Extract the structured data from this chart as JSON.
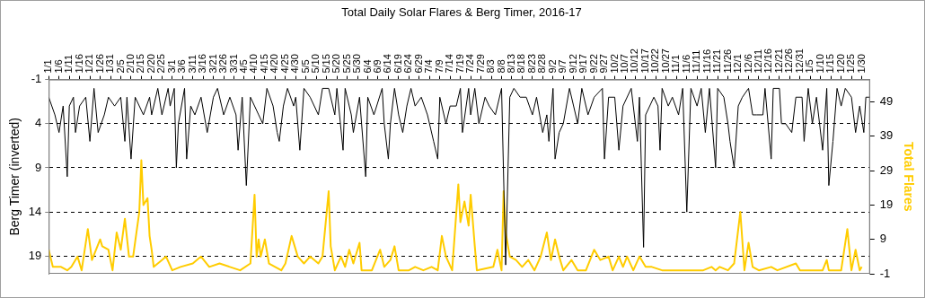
{
  "chart_data": {
    "type": "line",
    "title": "Total Daily Solar Flares & Berg Timer, 2016-17",
    "ylabel": "Berg Timer (inverted)",
    "y2label": "Total Flares",
    "xlim": [
      "2016-01-01",
      "2017-02-03"
    ],
    "xticks": [
      {
        "value": "2016-01-01",
        "label": "1/1"
      },
      {
        "value": "2016-01-06",
        "label": "1/6"
      },
      {
        "value": "2016-01-11",
        "label": "1/11"
      },
      {
        "value": "2016-01-16",
        "label": "1/16"
      },
      {
        "value": "2016-01-21",
        "label": "1/21"
      },
      {
        "value": "2016-01-26",
        "label": "1/26"
      },
      {
        "value": "2016-01-31",
        "label": "1/31"
      },
      {
        "value": "2016-02-05",
        "label": "2/5"
      },
      {
        "value": "2016-02-10",
        "label": "2/10"
      },
      {
        "value": "2016-02-15",
        "label": "2/15"
      },
      {
        "value": "2016-02-20",
        "label": "2/20"
      },
      {
        "value": "2016-02-25",
        "label": "2/25"
      },
      {
        "value": "2016-03-01",
        "label": "3/1"
      },
      {
        "value": "2016-03-06",
        "label": "3/6"
      },
      {
        "value": "2016-03-11",
        "label": "3/11"
      },
      {
        "value": "2016-03-16",
        "label": "3/16"
      },
      {
        "value": "2016-03-21",
        "label": "3/21"
      },
      {
        "value": "2016-03-26",
        "label": "3/26"
      },
      {
        "value": "2016-03-31",
        "label": "3/31"
      },
      {
        "value": "2016-04-05",
        "label": "4/5"
      },
      {
        "value": "2016-04-10",
        "label": "4/10"
      },
      {
        "value": "2016-04-15",
        "label": "4/15"
      },
      {
        "value": "2016-04-20",
        "label": "4/20"
      },
      {
        "value": "2016-04-25",
        "label": "4/25"
      },
      {
        "value": "2016-04-30",
        "label": "4/30"
      },
      {
        "value": "2016-05-05",
        "label": "5/5"
      },
      {
        "value": "2016-05-10",
        "label": "5/10"
      },
      {
        "value": "2016-05-15",
        "label": "5/15"
      },
      {
        "value": "2016-05-20",
        "label": "5/20"
      },
      {
        "value": "2016-05-25",
        "label": "5/25"
      },
      {
        "value": "2016-05-30",
        "label": "5/30"
      },
      {
        "value": "2016-06-04",
        "label": "6/4"
      },
      {
        "value": "2016-06-09",
        "label": "6/9"
      },
      {
        "value": "2016-06-14",
        "label": "6/14"
      },
      {
        "value": "2016-06-19",
        "label": "6/19"
      },
      {
        "value": "2016-06-24",
        "label": "6/24"
      },
      {
        "value": "2016-06-29",
        "label": "6/29"
      },
      {
        "value": "2016-07-04",
        "label": "7/4"
      },
      {
        "value": "2016-07-09",
        "label": "7/9"
      },
      {
        "value": "2016-07-14",
        "label": "7/14"
      },
      {
        "value": "2016-07-19",
        "label": "7/19"
      },
      {
        "value": "2016-07-24",
        "label": "7/24"
      },
      {
        "value": "2016-07-29",
        "label": "7/29"
      },
      {
        "value": "2016-08-03",
        "label": "8/3"
      },
      {
        "value": "2016-08-08",
        "label": "8/8"
      },
      {
        "value": "2016-08-13",
        "label": "8/13"
      },
      {
        "value": "2016-08-18",
        "label": "8/18"
      },
      {
        "value": "2016-08-23",
        "label": "8/23"
      },
      {
        "value": "2016-08-28",
        "label": "8/28"
      },
      {
        "value": "2016-09-02",
        "label": "9/2"
      },
      {
        "value": "2016-09-07",
        "label": "9/7"
      },
      {
        "value": "2016-09-12",
        "label": "9/12"
      },
      {
        "value": "2016-09-17",
        "label": "9/17"
      },
      {
        "value": "2016-09-22",
        "label": "9/22"
      },
      {
        "value": "2016-09-27",
        "label": "9/27"
      },
      {
        "value": "2016-10-02",
        "label": "10/2"
      },
      {
        "value": "2016-10-07",
        "label": "10/7"
      },
      {
        "value": "2016-10-12",
        "label": "10/12"
      },
      {
        "value": "2016-10-17",
        "label": "10/17"
      },
      {
        "value": "2016-10-22",
        "label": "10/22"
      },
      {
        "value": "2016-10-27",
        "label": "10/27"
      },
      {
        "value": "2016-11-01",
        "label": "11/1"
      },
      {
        "value": "2016-11-06",
        "label": "11/6"
      },
      {
        "value": "2016-11-11",
        "label": "11/11"
      },
      {
        "value": "2016-11-16",
        "label": "11/16"
      },
      {
        "value": "2016-11-21",
        "label": "11/21"
      },
      {
        "value": "2016-11-26",
        "label": "11/26"
      },
      {
        "value": "2016-12-01",
        "label": "12/1"
      },
      {
        "value": "2016-12-06",
        "label": "12/6"
      },
      {
        "value": "2016-12-11",
        "label": "12/11"
      },
      {
        "value": "2016-12-16",
        "label": "12/16"
      },
      {
        "value": "2016-12-21",
        "label": "12/21"
      },
      {
        "value": "2016-12-26",
        "label": "12/26"
      },
      {
        "value": "2016-12-31",
        "label": "12/31"
      },
      {
        "value": "2017-01-05",
        "label": "1/5"
      },
      {
        "value": "2017-01-10",
        "label": "1/10"
      },
      {
        "value": "2017-01-15",
        "label": "1/15"
      },
      {
        "value": "2017-01-20",
        "label": "1/20"
      },
      {
        "value": "2017-01-25",
        "label": "1/25"
      },
      {
        "value": "2017-01-30",
        "label": "1/30"
      }
    ],
    "ylim": [
      21,
      -1
    ],
    "yticks": [
      -1,
      4,
      9,
      14,
      19
    ],
    "y2lim": [
      -1,
      55.5
    ],
    "y2ticks": [
      -1,
      9,
      19,
      29,
      39,
      49
    ],
    "grid": "y",
    "marker": "none",
    "series": [
      {
        "color": "#000000",
        "x": [
          "2016-01-01",
          "2016-01-04",
          "2016-01-06",
          "2016-01-08",
          "2016-01-10",
          "2016-01-11",
          "2016-01-13",
          "2016-01-14",
          "2016-01-16",
          "2016-01-19",
          "2016-01-21",
          "2016-01-23",
          "2016-01-25",
          "2016-01-28",
          "2016-01-30",
          "2016-02-02",
          "2016-02-05",
          "2016-02-07",
          "2016-02-08",
          "2016-02-10",
          "2016-02-12",
          "2016-02-16",
          "2016-02-19",
          "2016-02-20",
          "2016-02-23",
          "2016-02-25",
          "2016-02-28",
          "2016-02-29",
          "2016-03-02",
          "2016-03-03",
          "2016-03-04",
          "2016-03-07",
          "2016-03-08",
          "2016-03-10",
          "2016-03-12",
          "2016-03-15",
          "2016-03-18",
          "2016-03-21",
          "2016-03-23",
          "2016-03-26",
          "2016-03-29",
          "2016-04-01",
          "2016-04-02",
          "2016-04-04",
          "2016-04-06",
          "2016-04-08",
          "2016-04-12",
          "2016-04-14",
          "2016-04-16",
          "2016-04-19",
          "2016-04-21",
          "2016-04-22",
          "2016-04-24",
          "2016-04-26",
          "2016-04-29",
          "2016-04-30",
          "2016-05-02",
          "2016-05-04",
          "2016-05-07",
          "2016-05-11",
          "2016-05-13",
          "2016-05-16",
          "2016-05-19",
          "2016-05-20",
          "2016-05-23",
          "2016-05-24",
          "2016-05-27",
          "2016-05-28",
          "2016-05-31",
          "2016-06-03",
          "2016-06-04",
          "2016-06-07",
          "2016-06-11",
          "2016-06-12",
          "2016-06-14",
          "2016-06-15",
          "2016-06-17",
          "2016-06-19",
          "2016-06-21",
          "2016-06-23",
          "2016-06-25",
          "2016-06-27",
          "2016-06-30",
          "2016-07-03",
          "2016-07-06",
          "2016-07-08",
          "2016-07-09",
          "2016-07-12",
          "2016-07-14",
          "2016-07-17",
          "2016-07-19",
          "2016-07-20",
          "2016-07-23",
          "2016-07-24",
          "2016-07-26",
          "2016-07-28",
          "2016-07-31",
          "2016-08-02",
          "2016-08-05",
          "2016-08-08",
          "2016-08-10",
          "2016-08-12",
          "2016-08-14",
          "2016-08-17",
          "2016-08-20",
          "2016-08-23",
          "2016-08-25",
          "2016-08-28",
          "2016-08-30",
          "2016-08-31",
          "2016-09-02",
          "2016-09-03",
          "2016-09-05",
          "2016-09-07",
          "2016-09-10",
          "2016-09-14",
          "2016-09-16",
          "2016-09-19",
          "2016-09-22",
          "2016-09-26",
          "2016-09-27",
          "2016-09-29",
          "2016-10-02",
          "2016-10-04",
          "2016-10-06",
          "2016-10-10",
          "2016-10-13",
          "2016-10-14",
          "2016-10-16",
          "2016-10-17",
          "2016-10-21",
          "2016-10-23",
          "2016-10-24",
          "2016-10-25",
          "2016-10-28",
          "2016-10-30",
          "2016-11-02",
          "2016-11-04",
          "2016-11-06",
          "2016-11-08",
          "2016-11-11",
          "2016-11-13",
          "2016-11-15",
          "2016-11-17",
          "2016-11-20",
          "2016-11-21",
          "2016-11-24",
          "2016-11-26",
          "2016-11-27",
          "2016-11-29",
          "2016-12-01",
          "2016-12-03",
          "2016-12-06",
          "2016-12-08",
          "2016-12-10",
          "2016-12-13",
          "2016-12-14",
          "2016-12-17",
          "2016-12-18",
          "2016-12-21",
          "2016-12-22",
          "2016-12-24",
          "2016-12-27",
          "2016-12-29",
          "2017-01-01",
          "2017-01-02",
          "2017-01-04",
          "2017-01-06",
          "2017-01-08",
          "2017-01-11",
          "2017-01-13",
          "2017-01-14",
          "2017-01-16",
          "2017-01-18",
          "2017-01-20",
          "2017-01-22",
          "2017-01-25",
          "2017-01-27",
          "2017-01-29",
          "2017-01-31",
          "2017-02-01",
          "2017-02-03"
        ],
        "values": [
          1,
          3,
          5,
          2,
          10,
          2,
          1,
          5,
          2,
          1,
          6,
          0,
          5,
          3,
          1,
          2,
          1,
          6,
          1,
          8,
          1,
          3,
          1,
          3,
          0,
          3,
          0,
          2,
          0,
          9,
          4,
          0,
          8,
          2,
          3,
          1,
          5,
          1,
          0,
          3,
          1,
          3,
          7,
          1,
          11,
          1,
          3,
          4,
          0,
          2,
          5,
          6,
          2,
          0,
          2,
          1,
          7,
          0,
          1,
          3,
          0,
          0,
          3,
          0,
          7,
          0,
          3,
          5,
          1,
          10,
          1,
          3,
          0,
          4,
          8,
          4,
          0,
          3,
          5,
          2,
          0,
          2,
          1,
          3,
          6,
          8,
          1,
          4,
          2,
          2,
          0,
          5,
          0,
          3,
          0,
          4,
          1,
          2,
          3,
          0,
          20,
          1,
          0,
          1,
          1,
          3,
          1,
          5,
          3,
          6,
          0,
          8,
          5,
          4,
          0,
          4,
          0,
          3,
          1,
          0,
          8,
          1,
          1,
          7,
          2,
          0,
          6,
          1,
          18,
          3,
          1,
          2,
          7,
          0,
          2,
          1,
          3,
          0,
          14,
          0,
          2,
          0,
          5,
          0,
          9,
          0,
          1,
          4,
          6,
          9,
          2,
          1,
          0,
          3,
          3,
          3,
          0,
          8,
          0,
          0,
          4,
          4,
          5,
          1,
          1,
          6,
          0,
          4,
          1,
          7,
          0,
          11,
          6,
          0,
          2,
          0,
          1,
          5,
          2,
          5,
          1,
          1
        ]
      },
      {
        "color": "#ffcc00",
        "axis": "y2",
        "x": [
          "2016-01-01",
          "2016-01-03",
          "2016-01-07",
          "2016-01-10",
          "2016-01-12",
          "2016-01-15",
          "2016-01-17",
          "2016-01-20",
          "2016-01-22",
          "2016-01-26",
          "2016-01-27",
          "2016-01-30",
          "2016-02-01",
          "2016-02-03",
          "2016-02-05",
          "2016-02-07",
          "2016-02-09",
          "2016-02-11",
          "2016-02-14",
          "2016-02-15",
          "2016-02-16",
          "2016-02-18",
          "2016-02-19",
          "2016-02-20",
          "2016-02-21",
          "2016-02-25",
          "2016-02-27",
          "2016-03-01",
          "2016-03-05",
          "2016-03-11",
          "2016-03-15",
          "2016-03-19",
          "2016-03-24",
          "2016-03-29",
          "2016-04-03",
          "2016-04-08",
          "2016-04-10",
          "2016-04-11",
          "2016-04-12",
          "2016-04-13",
          "2016-04-15",
          "2016-04-17",
          "2016-04-23",
          "2016-04-25",
          "2016-04-28",
          "2016-05-01",
          "2016-05-04",
          "2016-05-07",
          "2016-05-11",
          "2016-05-13",
          "2016-05-16",
          "2016-05-17",
          "2016-05-19",
          "2016-05-22",
          "2016-05-24",
          "2016-05-26",
          "2016-05-28",
          "2016-05-31",
          "2016-06-01",
          "2016-06-06",
          "2016-06-10",
          "2016-06-12",
          "2016-06-15",
          "2016-06-17",
          "2016-06-19",
          "2016-06-24",
          "2016-06-27",
          "2016-07-01",
          "2016-07-05",
          "2016-07-08",
          "2016-07-10",
          "2016-07-12",
          "2016-07-15",
          "2016-07-18",
          "2016-07-19",
          "2016-07-21",
          "2016-07-23",
          "2016-07-24",
          "2016-07-26",
          "2016-07-27",
          "2016-08-04",
          "2016-08-06",
          "2016-08-08",
          "2016-08-09",
          "2016-08-10",
          "2016-08-12",
          "2016-08-15",
          "2016-08-18",
          "2016-08-21",
          "2016-08-24",
          "2016-08-27",
          "2016-08-30",
          "2016-09-01",
          "2016-09-03",
          "2016-09-05",
          "2016-09-07",
          "2016-09-11",
          "2016-09-14",
          "2016-09-18",
          "2016-09-22",
          "2016-09-25",
          "2016-09-29",
          "2016-10-01",
          "2016-10-04",
          "2016-10-06",
          "2016-10-08",
          "2016-10-11",
          "2016-10-14",
          "2016-10-17",
          "2016-10-20",
          "2016-10-25",
          "2016-11-14",
          "2016-11-18",
          "2016-11-20",
          "2016-11-22",
          "2016-11-26",
          "2016-11-29",
          "2016-12-02",
          "2016-12-04",
          "2016-12-06",
          "2016-12-08",
          "2016-12-11",
          "2016-12-17",
          "2016-12-20",
          "2016-12-29",
          "2016-12-31",
          "2017-01-11",
          "2017-01-13",
          "2017-01-14",
          "2017-01-20",
          "2017-01-23",
          "2017-01-25",
          "2017-01-27",
          "2017-01-29",
          "2017-01-30"
        ],
        "values": [
          6,
          1,
          1,
          0,
          1,
          4,
          0,
          12,
          3,
          9,
          7,
          6,
          0,
          11,
          6,
          15,
          4,
          4,
          17,
          32,
          19,
          21,
          10,
          6,
          1,
          3,
          4,
          0,
          1,
          2,
          4,
          1,
          2,
          1,
          0,
          2,
          22,
          4,
          9,
          4,
          9,
          2,
          0,
          2,
          10,
          4,
          2,
          4,
          2,
          4,
          23,
          7,
          0,
          4,
          1,
          6,
          2,
          8,
          0,
          0,
          6,
          1,
          3,
          7,
          0,
          0,
          1,
          0,
          1,
          0,
          10,
          4,
          0,
          25,
          14,
          20,
          13,
          22,
          7,
          0,
          1,
          6,
          0,
          23,
          11,
          4,
          3,
          1,
          3,
          0,
          4,
          11,
          3,
          9,
          4,
          0,
          3,
          0,
          0,
          6,
          3,
          4,
          0,
          4,
          1,
          4,
          0,
          4,
          1,
          1,
          0,
          0,
          1,
          0,
          1,
          0,
          2,
          17,
          0,
          8,
          1,
          0,
          1,
          0,
          2,
          0,
          0,
          3,
          0,
          0,
          12,
          0,
          6,
          0,
          1
        ]
      }
    ]
  }
}
